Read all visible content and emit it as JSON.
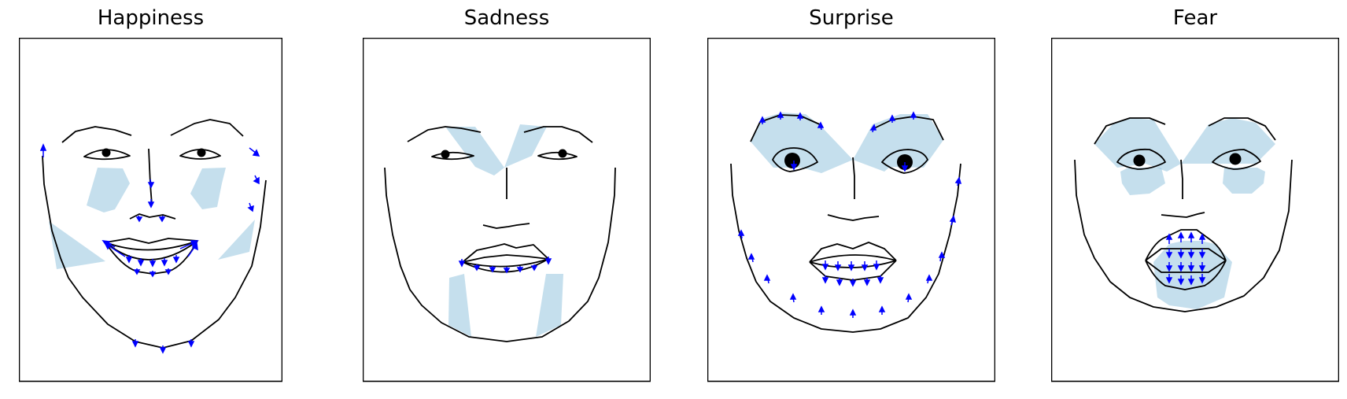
{
  "panels": [
    {
      "title": "Happiness",
      "expression": "happiness",
      "shaded_regions": [
        "cheeks",
        "mouth-corners"
      ],
      "arrow_regions": [
        "jaw",
        "mouth",
        "nose"
      ]
    },
    {
      "title": "Sadness",
      "expression": "sadness",
      "shaded_regions": [
        "inner-brows",
        "chin"
      ],
      "arrow_regions": [
        "mouth"
      ]
    },
    {
      "title": "Surprise",
      "expression": "surprise",
      "shaded_regions": [
        "brows"
      ],
      "arrow_regions": [
        "brows",
        "mouth",
        "jaw"
      ]
    },
    {
      "title": "Fear",
      "expression": "fear",
      "shaded_regions": [
        "brows",
        "under-eyes",
        "mouth"
      ],
      "arrow_regions": [
        "mouth"
      ]
    }
  ],
  "colors": {
    "outline": "#000000",
    "arrow": "#0000ff",
    "shade": "#9ecae1",
    "frame": "#000000"
  }
}
